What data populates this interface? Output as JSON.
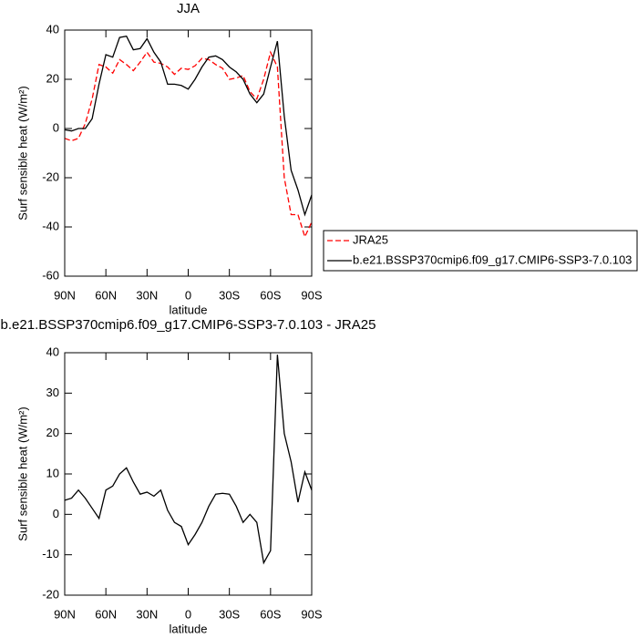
{
  "chart_data": [
    {
      "type": "line",
      "title": "JJA",
      "ylabel": "Surf sensible heat (W/m²)",
      "xlabel": "latitude",
      "x": [
        90,
        85,
        80,
        75,
        70,
        65,
        60,
        55,
        50,
        45,
        40,
        35,
        30,
        25,
        20,
        15,
        10,
        5,
        0,
        -5,
        -10,
        -15,
        -20,
        -25,
        -30,
        -35,
        -40,
        -45,
        -50,
        -55,
        -60,
        -65,
        -70,
        -75,
        -80,
        -85,
        -90
      ],
      "xlim": [
        90,
        -90
      ],
      "xticks": [
        {
          "value": 90,
          "label": "90N"
        },
        {
          "value": 60,
          "label": "60N"
        },
        {
          "value": 30,
          "label": "30N"
        },
        0,
        {
          "value": -30,
          "label": "30S"
        },
        {
          "value": -60,
          "label": "60S"
        },
        {
          "value": -90,
          "label": "90S"
        }
      ],
      "ylim": [
        -60,
        40
      ],
      "yticks": [
        -60,
        -40,
        -20,
        0,
        20,
        40
      ],
      "legend": "right",
      "series": [
        {
          "name": "JRA25",
          "color": "#ff0000",
          "line_style": "dashed",
          "values": [
            -4,
            -5,
            -4,
            2,
            12,
            26,
            25,
            22.5,
            28,
            26,
            23.5,
            27,
            31,
            27,
            26.5,
            25,
            22,
            24.5,
            24,
            25.5,
            28.5,
            28,
            26,
            24.5,
            20,
            20.5,
            21.5,
            15,
            12,
            20,
            31,
            25,
            -20,
            -35,
            -35,
            -44,
            -38
          ]
        },
        {
          "name": "b.e21.BSSP370cmip6.f09_g17.CMIP6-SSP3-7.0.103",
          "color": "#000000",
          "line_style": "solid",
          "values": [
            -0.5,
            -1,
            0,
            0,
            4,
            18,
            30,
            29,
            37,
            37.5,
            32,
            32.5,
            36.5,
            31,
            27,
            18,
            18,
            17.5,
            16,
            20,
            25,
            29,
            29.5,
            28,
            25,
            23,
            20,
            14,
            10.5,
            14,
            25,
            35.5,
            5,
            -17,
            -25,
            -35,
            -27
          ]
        }
      ]
    },
    {
      "type": "line",
      "title": "b.e21.BSSP370cmip6.f09_g17.CMIP6-SSP3-7.0.103 - JRA25",
      "ylabel": "Surf sensible heat (W/m²)",
      "xlabel": "latitude",
      "x": [
        90,
        85,
        80,
        75,
        70,
        65,
        60,
        55,
        50,
        45,
        40,
        35,
        30,
        25,
        20,
        15,
        10,
        5,
        0,
        -5,
        -10,
        -15,
        -20,
        -25,
        -30,
        -35,
        -40,
        -45,
        -50,
        -55,
        -60,
        -65,
        -70,
        -75,
        -80,
        -85,
        -90
      ],
      "xlim": [
        90,
        -90
      ],
      "xticks": [
        {
          "value": 90,
          "label": "90N"
        },
        {
          "value": 60,
          "label": "60N"
        },
        {
          "value": 30,
          "label": "30N"
        },
        0,
        {
          "value": -30,
          "label": "30S"
        },
        {
          "value": -60,
          "label": "60S"
        },
        {
          "value": -90,
          "label": "90S"
        }
      ],
      "ylim": [
        -20,
        40
      ],
      "yticks": [
        -20,
        -10,
        0,
        10,
        20,
        30,
        40
      ],
      "series": [
        {
          "color": "#000000",
          "line_style": "solid",
          "values": [
            3.5,
            4,
            6,
            4,
            1.5,
            -1,
            6,
            7,
            10,
            11.5,
            8,
            5,
            5.5,
            4.5,
            6,
            1,
            -2,
            -3,
            -7.5,
            -5,
            -2,
            2,
            5,
            5.2,
            5,
            2,
            -2,
            0,
            -2,
            -12,
            -9,
            39.5,
            20,
            13,
            3,
            10.5,
            6
          ]
        }
      ]
    }
  ]
}
